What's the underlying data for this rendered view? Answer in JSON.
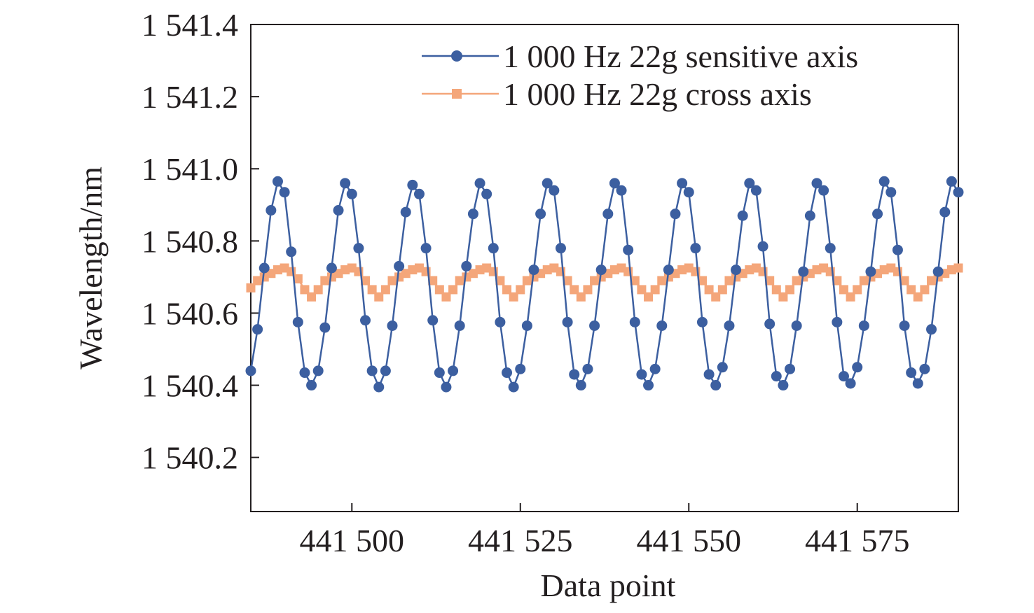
{
  "chart_data": {
    "type": "line",
    "xlabel": "Data point",
    "ylabel": "Wavelength/nm",
    "xlim": [
      441485,
      441590
    ],
    "ylim": [
      1540.05,
      1541.4
    ],
    "x_ticks": [
      441500,
      441525,
      441550,
      441575
    ],
    "x_tick_labels": [
      "441 500",
      "441 525",
      "441 550",
      "441 575"
    ],
    "y_ticks": [
      1540.2,
      1540.4,
      1540.6,
      1540.8,
      1541.0,
      1541.2,
      1541.4
    ],
    "y_tick_labels": [
      "1 540.2",
      "1 540.4",
      "1 540.6",
      "1 540.8",
      "1 541.0",
      "1 541.2",
      "1 541.4"
    ],
    "grid": false,
    "legend_position": "top-right",
    "series": [
      {
        "name": "1 000 Hz 22g sensitive axis",
        "color": "#3c5fa0",
        "marker": "circle",
        "x": [
          441485,
          441486,
          441487,
          441488,
          441489,
          441490,
          441491,
          441492,
          441493,
          441494,
          441495,
          441496,
          441497,
          441498,
          441499,
          441500,
          441501,
          441502,
          441503,
          441504,
          441505,
          441506,
          441507,
          441508,
          441509,
          441510,
          441511,
          441512,
          441513,
          441514,
          441515,
          441516,
          441517,
          441518,
          441519,
          441520,
          441521,
          441522,
          441523,
          441524,
          441525,
          441526,
          441527,
          441528,
          441529,
          441530,
          441531,
          441532,
          441533,
          441534,
          441535,
          441536,
          441537,
          441538,
          441539,
          441540,
          441541,
          441542,
          441543,
          441544,
          441545,
          441546,
          441547,
          441548,
          441549,
          441550,
          441551,
          441552,
          441553,
          441554,
          441555,
          441556,
          441557,
          441558,
          441559,
          441560,
          441561,
          441562,
          441563,
          441564,
          441565,
          441566,
          441567,
          441568,
          441569,
          441570,
          441571,
          441572,
          441573,
          441574,
          441575,
          441576,
          441577,
          441578,
          441579,
          441580,
          441581,
          441582,
          441583,
          441584,
          441585,
          441586,
          441587,
          441588,
          441589,
          441590
        ],
        "y": [
          1540.44,
          1540.555,
          1540.725,
          1540.885,
          1540.965,
          1540.935,
          1540.77,
          1540.575,
          1540.435,
          1540.4,
          1540.44,
          1540.56,
          1540.725,
          1540.885,
          1540.96,
          1540.93,
          1540.78,
          1540.58,
          1540.44,
          1540.395,
          1540.44,
          1540.565,
          1540.73,
          1540.88,
          1540.955,
          1540.93,
          1540.78,
          1540.58,
          1540.435,
          1540.395,
          1540.44,
          1540.565,
          1540.73,
          1540.875,
          1540.96,
          1540.93,
          1540.78,
          1540.575,
          1540.435,
          1540.395,
          1540.445,
          1540.565,
          1540.72,
          1540.875,
          1540.96,
          1540.94,
          1540.78,
          1540.575,
          1540.43,
          1540.4,
          1540.445,
          1540.565,
          1540.72,
          1540.875,
          1540.96,
          1540.94,
          1540.775,
          1540.575,
          1540.43,
          1540.4,
          1540.445,
          1540.565,
          1540.72,
          1540.875,
          1540.96,
          1540.935,
          1540.78,
          1540.575,
          1540.43,
          1540.4,
          1540.45,
          1540.565,
          1540.72,
          1540.87,
          1540.96,
          1540.94,
          1540.785,
          1540.57,
          1540.425,
          1540.4,
          1540.445,
          1540.565,
          1540.715,
          1540.87,
          1540.96,
          1540.94,
          1540.78,
          1540.575,
          1540.425,
          1540.405,
          1540.45,
          1540.565,
          1540.715,
          1540.875,
          1540.965,
          1540.935,
          1540.775,
          1540.565,
          1540.435,
          1540.405,
          1540.445,
          1540.555,
          1540.715,
          1540.88,
          1540.965,
          1540.935
        ]
      },
      {
        "name": "1 000 Hz 22g cross axis",
        "color": "#f4a67a",
        "marker": "square",
        "x": [
          441485,
          441486,
          441487,
          441488,
          441489,
          441490,
          441491,
          441492,
          441493,
          441494,
          441495,
          441496,
          441497,
          441498,
          441499,
          441500,
          441501,
          441502,
          441503,
          441504,
          441505,
          441506,
          441507,
          441508,
          441509,
          441510,
          441511,
          441512,
          441513,
          441514,
          441515,
          441516,
          441517,
          441518,
          441519,
          441520,
          441521,
          441522,
          441523,
          441524,
          441525,
          441526,
          441527,
          441528,
          441529,
          441530,
          441531,
          441532,
          441533,
          441534,
          441535,
          441536,
          441537,
          441538,
          441539,
          441540,
          441541,
          441542,
          441543,
          441544,
          441545,
          441546,
          441547,
          441548,
          441549,
          441550,
          441551,
          441552,
          441553,
          441554,
          441555,
          441556,
          441557,
          441558,
          441559,
          441560,
          441561,
          441562,
          441563,
          441564,
          441565,
          441566,
          441567,
          441568,
          441569,
          441570,
          441571,
          441572,
          441573,
          441574,
          441575,
          441576,
          441577,
          441578,
          441579,
          441580,
          441581,
          441582,
          441583,
          441584,
          441585,
          441586,
          441587,
          441588,
          441589,
          441590
        ],
        "y": [
          1540.67,
          1540.69,
          1540.7,
          1540.71,
          1540.72,
          1540.725,
          1540.715,
          1540.695,
          1540.665,
          1540.645,
          1540.665,
          1540.69,
          1540.7,
          1540.71,
          1540.72,
          1540.725,
          1540.715,
          1540.69,
          1540.665,
          1540.645,
          1540.665,
          1540.69,
          1540.7,
          1540.71,
          1540.72,
          1540.725,
          1540.715,
          1540.69,
          1540.665,
          1540.645,
          1540.665,
          1540.69,
          1540.7,
          1540.71,
          1540.72,
          1540.725,
          1540.715,
          1540.69,
          1540.665,
          1540.645,
          1540.665,
          1540.69,
          1540.7,
          1540.71,
          1540.72,
          1540.725,
          1540.715,
          1540.69,
          1540.665,
          1540.645,
          1540.665,
          1540.69,
          1540.7,
          1540.71,
          1540.72,
          1540.725,
          1540.715,
          1540.69,
          1540.665,
          1540.645,
          1540.665,
          1540.69,
          1540.7,
          1540.71,
          1540.72,
          1540.725,
          1540.715,
          1540.69,
          1540.665,
          1540.645,
          1540.665,
          1540.69,
          1540.7,
          1540.71,
          1540.72,
          1540.725,
          1540.715,
          1540.69,
          1540.665,
          1540.645,
          1540.665,
          1540.69,
          1540.7,
          1540.71,
          1540.72,
          1540.725,
          1540.715,
          1540.69,
          1540.665,
          1540.645,
          1540.665,
          1540.69,
          1540.7,
          1540.71,
          1540.72,
          1540.725,
          1540.715,
          1540.69,
          1540.665,
          1540.645,
          1540.665,
          1540.69,
          1540.7,
          1540.71,
          1540.72,
          1540.725
        ]
      }
    ]
  }
}
